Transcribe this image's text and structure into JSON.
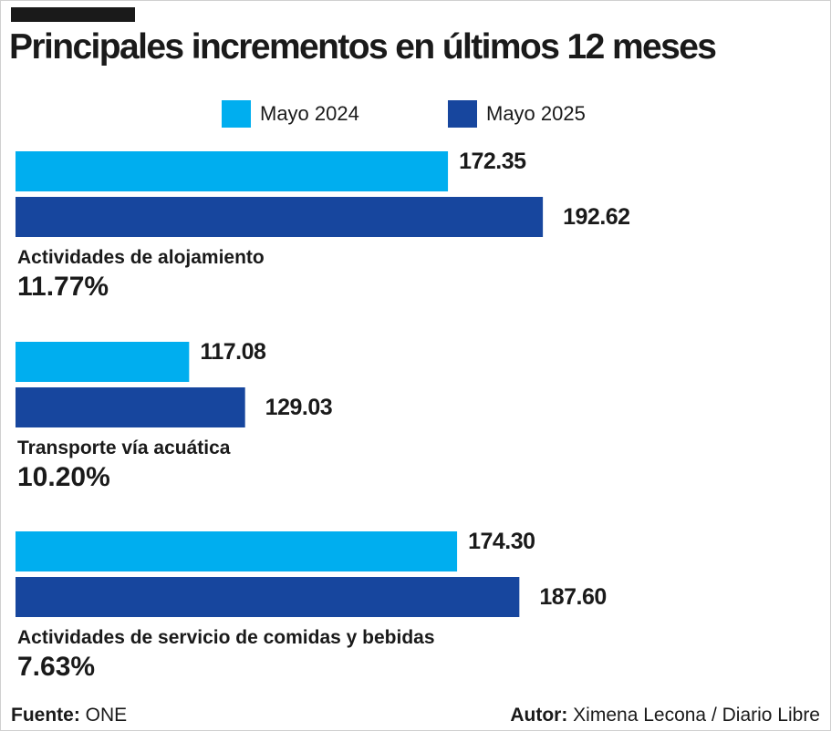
{
  "chart_data": {
    "type": "bar",
    "orientation": "horizontal",
    "title": "Principales incrementos en últimos 12 meses",
    "categories": [
      "Actividades de alojamiento",
      "Transporte vía acuática",
      "Actividades de servicio de comidas y bebidas"
    ],
    "percent_changes": [
      "11.77%",
      "10.20%",
      "7.63%"
    ],
    "series": [
      {
        "name": "Mayo 2024",
        "color": "#00aeef",
        "values": [
          172.35,
          117.08,
          174.3
        ],
        "labels": [
          "172.35",
          "117.08",
          "174.30"
        ]
      },
      {
        "name": "Mayo 2025",
        "color": "#17469e",
        "values": [
          192.62,
          129.03,
          187.6
        ],
        "labels": [
          "192.62",
          "129.03",
          "187.60"
        ]
      }
    ],
    "xlim": [
      80,
      200
    ],
    "legend_position": "top-center"
  },
  "footer": {
    "source_label": "Fuente:",
    "source_value": "ONE",
    "author_label": "Autor:",
    "author_value": "Ximena Lecona / Diario Libre"
  }
}
